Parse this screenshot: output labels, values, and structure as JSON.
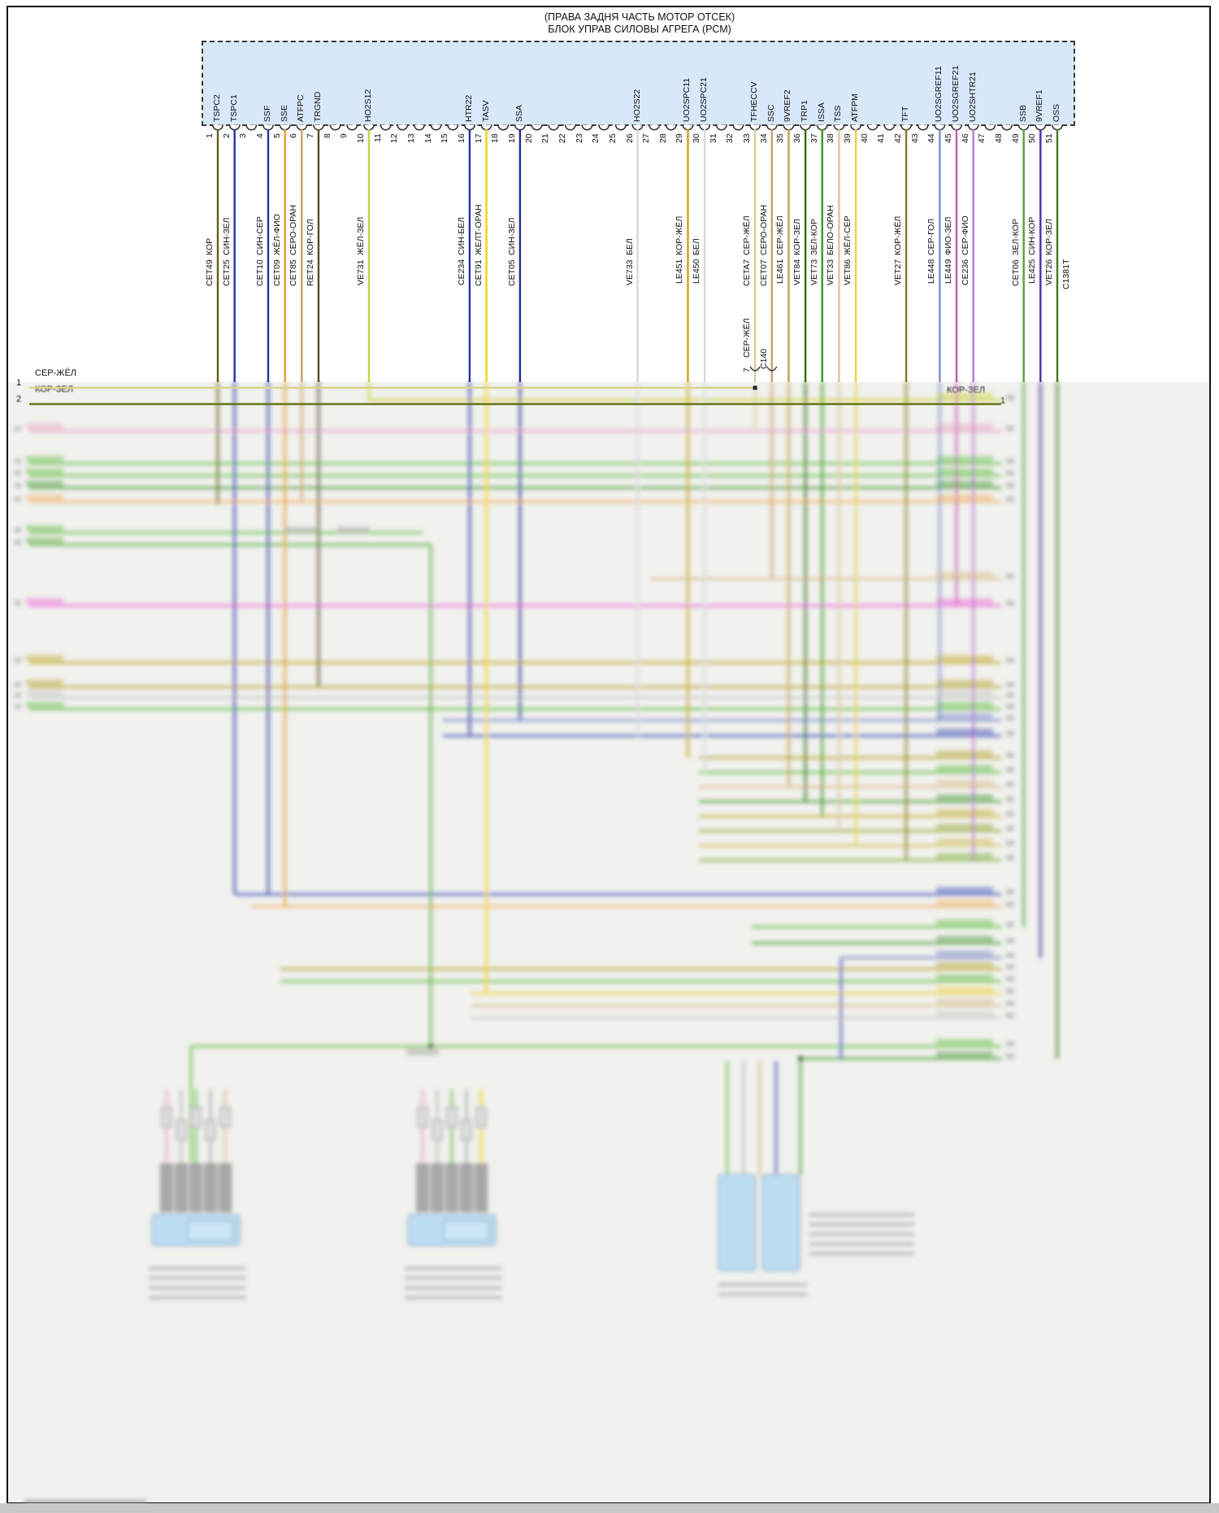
{
  "title": {
    "line1": "(ПРАВА ЗАДНЯ ЧАСТЬ МОТОР ОТСЕК)",
    "line2": "БЛОК УПРАВ СИЛОВЫ АГРЕГА (РСМ)"
  },
  "pcm": {
    "pin_count": 51,
    "connector_id": "C1381T",
    "block_fill": "#d7e8f8",
    "pins": [
      {
        "n": 1,
        "name": "TSPC2",
        "color": "КОР",
        "code": "CET49",
        "hex": "#6b5920"
      },
      {
        "n": 2,
        "name": "TSPC1",
        "color": "СИН-ЗЕЛ",
        "code": "CET25",
        "hex": "#2733a6"
      },
      {
        "n": 4,
        "name": "SSF",
        "color": "СИН-СЕР",
        "code": "CET10",
        "hex": "#2733a6"
      },
      {
        "n": 5,
        "name": "SSE",
        "color": "ЖЁЛ-ФИО",
        "code": "CET09",
        "hex": "#e59c2e"
      },
      {
        "n": 6,
        "name": "ATFPC",
        "color": "СЕРО-ОРАН",
        "code": "CET85",
        "hex": "#c9a06a"
      },
      {
        "n": 7,
        "name": "TRGND",
        "color": "КОР-ГОЛ",
        "code": "RET24",
        "hex": "#5a4a2a"
      },
      {
        "n": 10,
        "name": "HO2S12",
        "color": "ЖЁЛ-ЗЕЛ",
        "code": "VE731",
        "hex": "#ccd43f"
      },
      {
        "n": 16,
        "name": "HTR22",
        "color": "СИН-БЕЛ",
        "code": "CE234",
        "hex": "#2733a6"
      },
      {
        "n": 17,
        "name": "TASV",
        "color": "ЖЕЛТ-ОРАН",
        "code": "CET91",
        "hex": "#f2d314"
      },
      {
        "n": 19,
        "name": "SSA",
        "color": "СИН-ЗЕЛ",
        "code": "CET05",
        "hex": "#232e8f"
      },
      {
        "n": 26,
        "name": "HO2S22",
        "color": "БЕЛ",
        "code": "VE733",
        "hex": "#d9d9d9"
      },
      {
        "n": 29,
        "name": "UO2SPC11",
        "color": "КОР-ЖЁЛ",
        "code": "LE451",
        "hex": "#c2a619"
      },
      {
        "n": 30,
        "name": "UO2SPC21",
        "color": "БЕЛ",
        "code": "LE450",
        "hex": "#d9d9d9"
      },
      {
        "n": 33,
        "name": "TFHECCV",
        "color": "СЕР-ЖЁЛ",
        "code": "CETA7",
        "hex": "#d9cf96"
      },
      {
        "n": 34,
        "name": "SSC",
        "color": "СЕРО-ОРАН",
        "code": "CET07",
        "hex": "#c9a06a"
      },
      {
        "n": 35,
        "name": "9VREF2",
        "color": "СЕР-ЖЁЛ",
        "code": "LE461",
        "hex": "#bfa24e"
      },
      {
        "n": 36,
        "name": "TRP1",
        "color": "КОР-ЗЕЛ",
        "code": "VET84",
        "hex": "#2f6b17"
      },
      {
        "n": 37,
        "name": "ISSA",
        "color": "ЗЕЛ-КОР",
        "code": "VET73",
        "hex": "#3f9426"
      },
      {
        "n": 38,
        "name": "TSS",
        "color": "БЕЛО-ОРАН",
        "code": "VET33",
        "hex": "#dcc49a"
      },
      {
        "n": 39,
        "name": "ATFPM",
        "color": "ЖЁЛ-СЕР",
        "code": "VET86",
        "hex": "#e5d44a"
      },
      {
        "n": 42,
        "name": "TFT",
        "color": "КОР-ЖЁЛ",
        "code": "VET27",
        "hex": "#8a7a1c"
      },
      {
        "n": 44,
        "name": "UO2SGREF11",
        "color": "СЕР-ГОЛ",
        "code": "LE448",
        "hex": "#7d8cc9"
      },
      {
        "n": 45,
        "name": "UO2SGREF21",
        "color": "ФИО-ЗЕЛ",
        "code": "LE449",
        "hex": "#c653b6"
      },
      {
        "n": 46,
        "name": "UO2SHTR21",
        "color": "СЕР-ФИО",
        "code": "CE236",
        "hex": "#ba79d3"
      },
      {
        "n": 49,
        "name": "SSB",
        "color": "ЗЕЛ-КОР",
        "code": "CET06",
        "hex": "#57a33b"
      },
      {
        "n": 50,
        "name": "9VREF1",
        "color": "СИН-КОР",
        "code": "LE425",
        "hex": "#3a35a8"
      },
      {
        "n": 51,
        "name": "OSS",
        "color": "КОР-ЗЕЛ",
        "code": "VET26",
        "hex": "#49741d"
      }
    ]
  },
  "inline_connector": {
    "color": "СЕР-ЖЁЛ",
    "pin": "7",
    "id": "С140"
  },
  "left_wires": [
    {
      "num": "1",
      "label": "СЕР-ЖЁЛ",
      "hex": "#d8d48c"
    },
    {
      "num": "2",
      "label": "КОР-ЗЕЛ",
      "hex": "#66761a"
    }
  ],
  "right_wire": {
    "label": "КОР-ЗЕЛ",
    "num": "1"
  }
}
